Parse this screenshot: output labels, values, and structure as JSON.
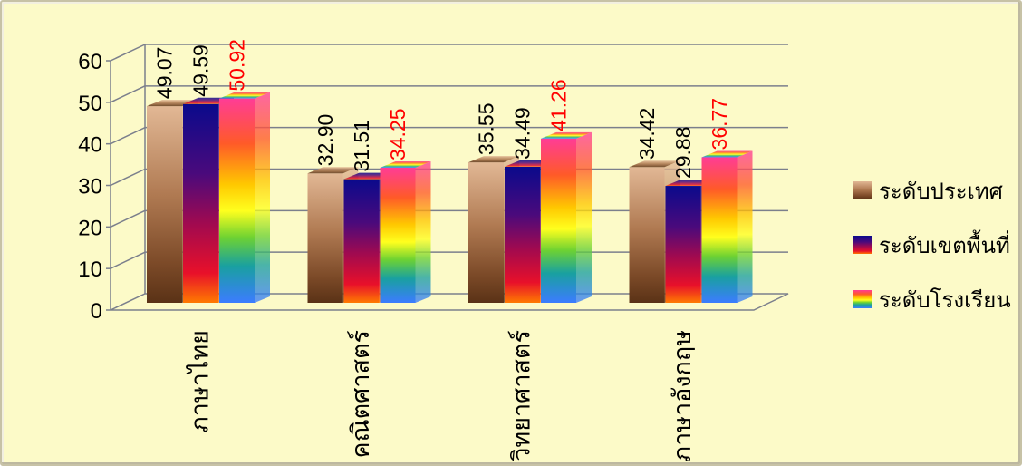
{
  "chart_data": {
    "type": "bar",
    "categories": [
      "ภาษาไทย",
      "คณิตศาสตร์",
      "วิทยาศาสตร์",
      "ภาษาอังกฤษ"
    ],
    "series": [
      {
        "name": "ระดับประเทศ",
        "values": [
          49.07,
          32.9,
          35.55,
          34.42
        ],
        "label_color": "#000000"
      },
      {
        "name": "ระดับเขตพื้นที่",
        "values": [
          49.59,
          31.51,
          34.49,
          29.88
        ],
        "label_color": "#000000"
      },
      {
        "name": "ระดับโรงเรียน",
        "values": [
          50.92,
          34.25,
          41.26,
          36.77
        ],
        "label_color": "#ff0000"
      }
    ],
    "data_labels": [
      [
        "49.07",
        "32.90",
        "35.55",
        "34.42"
      ],
      [
        "49.59",
        "31.51",
        "34.49",
        "29.88"
      ],
      [
        "50.92",
        "34.25",
        "41.26",
        "36.77"
      ]
    ],
    "y_ticks": [
      "0",
      "10",
      "20",
      "30",
      "40",
      "50",
      "60"
    ],
    "ylim": [
      0,
      60
    ],
    "grid": true,
    "legend_position": "right",
    "three_d": true
  },
  "colors": {
    "background": "#fcfac8",
    "grid": "#7b7f8c"
  }
}
